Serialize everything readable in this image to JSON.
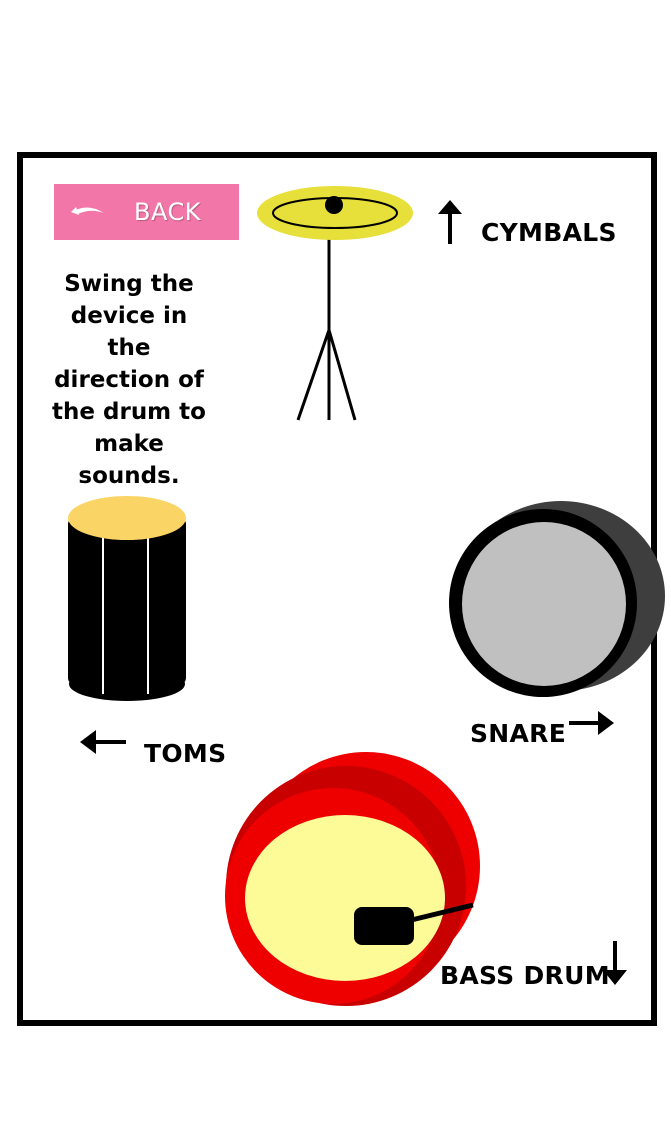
{
  "back_button": {
    "label": "BACK",
    "icon": "undo-arrow-icon"
  },
  "instructions": "Swing the device in the direction of the drum to make sounds.",
  "drums": {
    "cymbals": {
      "label": "CYMBALS",
      "direction_icon": "arrow-up-icon"
    },
    "toms": {
      "label": "TOMS",
      "direction_icon": "arrow-left-icon"
    },
    "snare": {
      "label": "SNARE",
      "direction_icon": "arrow-right-icon"
    },
    "bass_drum": {
      "label": "BASS DRUM",
      "direction_icon": "arrow-down-icon"
    }
  },
  "colors": {
    "frame": "#000000",
    "back_button": "#f277a8",
    "cymbal": "#e8e03a",
    "tom_head": "#fbd466",
    "snare_head": "#c0c0c0",
    "bass_shell": "#ee0000",
    "bass_head": "#fdfb98"
  }
}
